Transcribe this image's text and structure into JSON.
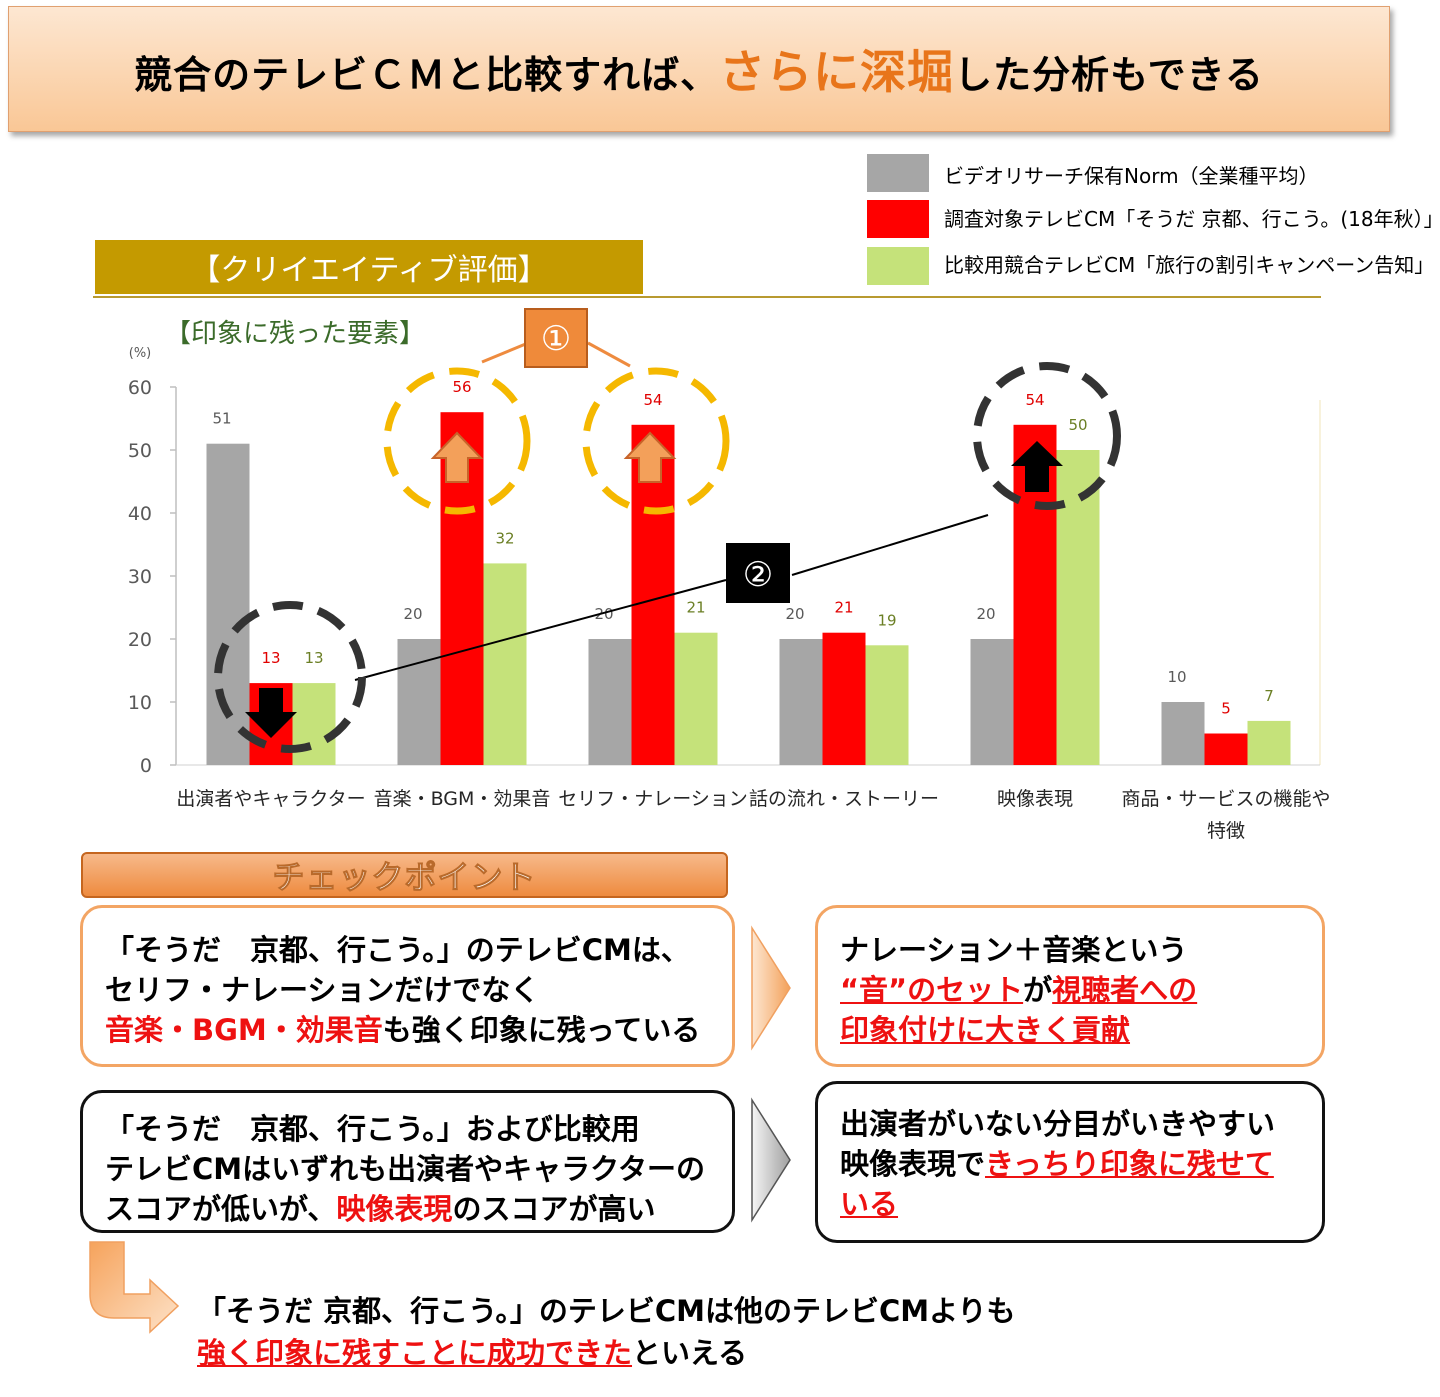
{
  "banner": {
    "part1": "競合のテレビＣＭと比較すれば、",
    "highlight": "さらに深堀",
    "part2": "した分析もできる"
  },
  "legend": [
    {
      "label": "ビデオリサーチ保有Norm（全業種平均）",
      "color": "#a6a6a6"
    },
    {
      "label": "調査対象テレビCM「そうだ 京都、行こう。(18年秋）」",
      "color": "#ff0000"
    },
    {
      "label": "比較用競合テレビCM「旅行の割引キャンペーン告知」",
      "color": "#c5e27a"
    }
  ],
  "section_title": "【クリイエイティブ評価】",
  "chart_subtitle": "【印象に残った要素】",
  "chart_data": {
    "type": "bar",
    "unit": "(%)",
    "ylim": [
      0,
      60
    ],
    "yticks": [
      0,
      10,
      20,
      30,
      40,
      50,
      60
    ],
    "categories": [
      "出演者やキャラクター",
      "音楽・BGM・効果音",
      "セリフ・ナレーション",
      "話の流れ・ストーリー",
      "映像表現",
      "商品・サービスの機能や\n特徴"
    ],
    "series": [
      {
        "name": "ビデオリサーチ保有Norm（全業種平均）",
        "color": "#a6a6a6",
        "label_color": "#595959",
        "values": [
          51,
          20,
          20,
          20,
          20,
          10
        ]
      },
      {
        "name": "調査対象テレビCM「そうだ 京都、行こう。(18年秋）」",
        "color": "#ff0000",
        "label_color": "#e00000",
        "values": [
          13,
          56,
          54,
          21,
          54,
          5
        ]
      },
      {
        "name": "比較用競合テレビCM「旅行の割引キャンペーン告知」",
        "color": "#c5e27a",
        "label_color": "#6b7f25",
        "values": [
          13,
          32,
          21,
          19,
          50,
          7
        ]
      }
    ],
    "annotations": {
      "marker1": "①",
      "marker2": "②"
    }
  },
  "checkpoint": {
    "title": "チェックポイント",
    "box1": {
      "line1": "「そうだ　京都、行こう。」のテレビCMは、",
      "line2": "セリフ・ナレーションだけでなく",
      "line3_red": "音楽・BGM・効果音",
      "line3_rest": "も強く印象に残っている"
    },
    "box2": {
      "line1": "ナレーション＋音楽という",
      "line2_red_a": "“音”のセット",
      "line2_mid": "が",
      "line2_red_b": "視聴者への",
      "line3_red": "印象付けに大きく貢献"
    },
    "box3": {
      "line1": "「そうだ　京都、行こう。」および比較用",
      "line2": "テレビCMはいずれも出演者やキャラクターの",
      "line3_a": "スコアが低いが、",
      "line3_red": "映像表現",
      "line3_b": "のスコアが高い"
    },
    "box4": {
      "line1": "出演者がいない分目がいきやすい",
      "line2_a": "映像表現で",
      "line2_red": "きっちり印象に残せて",
      "line3_red": "いる"
    }
  },
  "conclusion": {
    "line1": "「そうだ 京都、行こう。」のテレビCMは他のテレビCMよりも",
    "line2_red": "強く印象に残すことに成功できた",
    "line2_rest": "といえる"
  }
}
